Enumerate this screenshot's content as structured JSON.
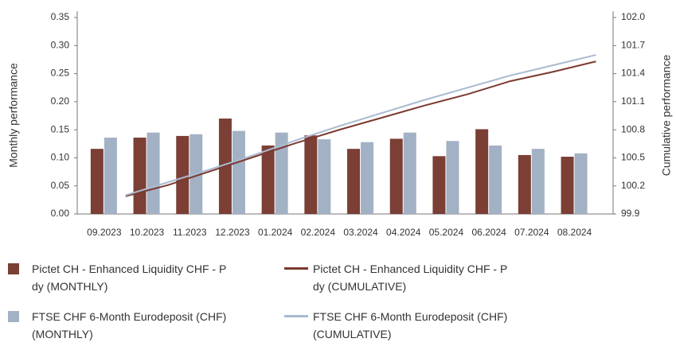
{
  "chart_data": {
    "type": "bar-line",
    "ylabel": "Monthly performance",
    "y2label": "Cumulative performance",
    "categories": [
      "09.2023",
      "10.2023",
      "11.2023",
      "12.2023",
      "01.2024",
      "02.2024",
      "03.2024",
      "04.2024",
      "05.2024",
      "06.2024",
      "07.2024",
      "08.2024"
    ],
    "series": [
      {
        "name": "Pictet CH - Enhanced Liquidity CHF - P dy (MONTHLY)",
        "type": "bar",
        "color": "#7b3f35",
        "values": [
          0.116,
          0.136,
          0.139,
          0.17,
          0.122,
          0.14,
          0.116,
          0.134,
          0.103,
          0.151,
          0.105,
          0.102
        ]
      },
      {
        "name": "FTSE CHF 6-Month Eurodeposit (CHF) (MONTHLY)",
        "type": "bar",
        "color": "#a3b1c4",
        "values": [
          0.136,
          0.145,
          0.142,
          0.148,
          0.145,
          0.133,
          0.128,
          0.145,
          0.13,
          0.122,
          0.116,
          0.108
        ]
      },
      {
        "name": "Pictet CH - Enhanced Liquidity CHF - P dy (CUMULATIVE)",
        "type": "line",
        "axis": "y2",
        "color": "#7b3a30",
        "values": [
          100.09,
          100.21,
          100.36,
          100.51,
          100.66,
          100.8,
          100.93,
          101.06,
          101.18,
          101.32,
          101.42,
          101.53
        ]
      },
      {
        "name": "FTSE CHF 6-Month Eurodeposit (CHF) (CUMULATIVE)",
        "type": "line",
        "axis": "y2",
        "color": "#a9bad0",
        "values": [
          100.1,
          100.24,
          100.38,
          100.53,
          100.69,
          100.84,
          100.98,
          101.12,
          101.25,
          101.38,
          101.49,
          101.6
        ]
      }
    ],
    "ylim": [
      0,
      0.35
    ],
    "yticks": [
      {
        "value": 0,
        "label": "0.00"
      },
      0.05,
      {
        "value": 0.1,
        "label": "0.10"
      },
      0.15,
      {
        "value": 0.2,
        "label": "0.20"
      },
      0.25,
      {
        "value": 0.3,
        "label": "0.30"
      },
      0.35
    ],
    "y2lim": [
      99.9,
      102.0
    ],
    "y2ticks": [
      99.9,
      100.2,
      100.5,
      100.8,
      101.1,
      101.4,
      101.7,
      {
        "value": 102.0,
        "label": "102.0"
      }
    ]
  }
}
